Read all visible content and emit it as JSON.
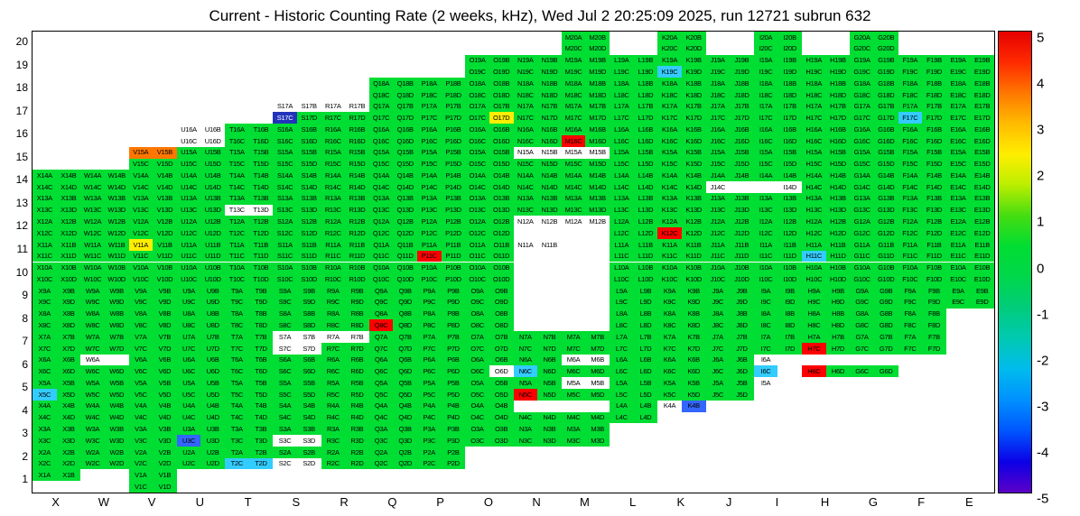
{
  "title": "Current - Historic Counting Rate (2 weeks, kHz), Wed Jul  2 20:25:09 2025, run 12721 subrun 632",
  "chart_data": {
    "type": "heatmap",
    "title": "Current - Historic Counting Rate (2 weeks, kHz), Wed Jul  2 20:25:09 2025, run 12721 subrun 632",
    "units": "kHz difference (current - historic)",
    "columns": [
      "X",
      "W",
      "V",
      "U",
      "T",
      "S",
      "R",
      "Q",
      "P",
      "O",
      "N",
      "M",
      "L",
      "K",
      "J",
      "I",
      "H",
      "G",
      "F",
      "E"
    ],
    "rows": [
      20,
      19,
      18,
      17,
      16,
      15,
      14,
      13,
      12,
      11,
      10,
      9,
      8,
      7,
      6,
      5,
      4,
      3,
      2,
      1
    ],
    "sublabels": [
      "A",
      "B",
      "C",
      "D"
    ],
    "zlim": [
      -5,
      5
    ],
    "colorbar_ticks": [
      5,
      4,
      3,
      2,
      1,
      0,
      -1,
      -2,
      -3,
      -4,
      -5
    ],
    "legend_position": "right",
    "grid": "off",
    "palette": {
      "g": "#00dd33",
      "w": "#ffffff",
      "r": "#ff0000",
      "o": "#ff7700",
      "y": "#ffee00",
      "c": "#33ccff",
      "b": "#3366ff",
      "B": "#2233bb"
    },
    "code_values": {
      "g": 0.5,
      "w": null,
      "r": 5,
      "o": 4,
      "y": 2.5,
      "c": -2,
      "b": -3,
      "B": -4
    },
    "colorbar_gradient": [
      "#e60000",
      "#ff2a00",
      "#ff7700",
      "#ffbb00",
      "#ffee00",
      "#baee00",
      "#44dd11",
      "#00dd33",
      "#00d74b",
      "#00cc7c",
      "#00c9b2",
      "#00bbee",
      "#0090ff",
      "#0055ff",
      "#0b00e6",
      "#5d00c8"
    ],
    "cells": {
      "20": [
        "",
        "",
        "",
        "",
        "",
        "",
        "",
        "",
        "",
        "",
        "",
        "gggg",
        "",
        "gggg",
        "",
        "gggg",
        "",
        "gggg",
        "",
        ""
      ],
      "19": [
        "",
        "",
        "",
        "",
        "",
        "",
        "",
        "",
        "",
        "gggg",
        "gggg",
        "gggg",
        "gggg",
        "ggcg",
        "gggg",
        "gggg",
        "gggg",
        "gggg",
        "gggg",
        "gggg"
      ],
      "18": [
        "",
        "",
        "",
        "",
        "",
        "",
        "",
        "gggg",
        "gggg",
        "gggg",
        "gggg",
        "gggg",
        "gggg",
        "gggg",
        "gggg",
        "gggg",
        "gggg",
        "gggg",
        "gggg",
        "gggg"
      ],
      "17": [
        "",
        "",
        "",
        "",
        "",
        "wwBg",
        "wwgg",
        "gggg",
        "gggg",
        "gggy",
        "gggg",
        "gggg",
        "gggg",
        "gggg",
        "gggg",
        "gggg",
        "gggg",
        "gggg",
        "ggcg",
        "gggg"
      ],
      "16": [
        "",
        "",
        "",
        "wwww",
        "gggg",
        "gggg",
        "gggg",
        "gggg",
        "gggg",
        "gggg",
        "gggg",
        "ggrg",
        "gggg",
        "gggg",
        "gggg",
        "gggg",
        "gggg",
        "gggg",
        "gggg",
        "gggg"
      ],
      "15": [
        "",
        "",
        "oogg",
        "gggg",
        "gggg",
        "gggg",
        "gggg",
        "gggg",
        "gggg",
        "gggg",
        "wwgg",
        "wwgg",
        "gggg",
        "gggg",
        "gggg",
        "gggg",
        "gggg",
        "gggg",
        "gggg",
        "gggg"
      ],
      "14": [
        "gggg",
        "gggg",
        "gggg",
        "gggg",
        "gggg",
        "gggg",
        "gggg",
        "gggg",
        "gggg",
        "gggg",
        "gggg",
        "gggg",
        "gggg",
        "gggg",
        "ggw.",
        "gg.w",
        "gggg",
        "gggg",
        "gggg",
        "gggg"
      ],
      "13": [
        "gggg",
        "gggg",
        "gggg",
        "gggg",
        "ggww",
        "gggg",
        "gggg",
        "gggg",
        "gggg",
        "gggg",
        "gggg",
        "gggg",
        "gggg",
        "gggg",
        "gggg",
        "gggg",
        "gggg",
        "gggg",
        "gggg",
        "gggg"
      ],
      "12": [
        "gggg",
        "gggg",
        "gggg",
        "gggg",
        "gggg",
        "gggg",
        "gggg",
        "gggg",
        "gggg",
        "gggg",
        "ww..",
        "ww..",
        "gggg",
        "ggrg",
        "gggg",
        "gggg",
        "gggg",
        "gggg",
        "gggg",
        "gggg"
      ],
      "11": [
        "gggg",
        "gggg",
        "yggg",
        "gggg",
        "gggg",
        "gggg",
        "gggg",
        "gggg",
        "ggrg",
        "gggg",
        "ww..",
        "",
        "gggg",
        "gggg",
        "gggg",
        "gggg",
        "ggcg",
        "gggg",
        "gggg",
        "gggg"
      ],
      "10": [
        "gggg",
        "gggg",
        "gggg",
        "gggg",
        "gggg",
        "gggg",
        "gggg",
        "gggg",
        "gggg",
        "gggg",
        "",
        "",
        "gggg",
        "gggg",
        "gggg",
        "gggg",
        "gggg",
        "gggg",
        "gggg",
        "gggg"
      ],
      "9": [
        "gggg",
        "gggg",
        "gggg",
        "gggg",
        "gggg",
        "gggg",
        "gggg",
        "gggg",
        "gggg",
        "gggg",
        "",
        "",
        "gggg",
        "gggg",
        "gggg",
        "gggg",
        "gggg",
        "gggg",
        "gggg",
        "gggg"
      ],
      "8": [
        "gggg",
        "gggg",
        "gggg",
        "gggg",
        "gggg",
        "gggg",
        "gggg",
        "ggrg",
        "gggg",
        "gggg",
        "",
        "",
        "gggg",
        "gggg",
        "gggg",
        "gggg",
        "gggg",
        "gggg",
        "gggg",
        ""
      ],
      "7": [
        "gggg",
        "gggg",
        "gggg",
        "gggg",
        "gggg",
        "wwww",
        "wwgg",
        "gggg",
        "gggg",
        "gggg",
        "gggg",
        "gggg",
        "gggg",
        "gggg",
        "gggg",
        "gggg",
        "ggrg",
        "gggg",
        "gggg",
        ""
      ],
      "6": [
        "gggg",
        "w.gg",
        "gggg",
        "gggg",
        "gggg",
        "gggg",
        "gggg",
        "gggg",
        "gggg",
        "gggw",
        "ggcg",
        "wwgg",
        "gggg",
        "gggg",
        "gggg",
        "w.c.",
        "..rg",
        "..gg",
        "",
        ""
      ],
      "5": [
        "ggcg",
        "gggg",
        "gggg",
        "gggg",
        "gggg",
        "gggg",
        "gggg",
        "gggg",
        "gggg",
        "gggg",
        "ggrg",
        "wwgg",
        "gggg",
        "gggg",
        "gggg",
        "w...",
        "",
        "",
        "",
        ""
      ],
      "4": [
        "gggg",
        "gggg",
        "gggg",
        "gggg",
        "gggg",
        "gggg",
        "gggg",
        "gggg",
        "gggg",
        "gggg",
        "..gg",
        "..gg",
        "gggg",
        "wb..",
        "",
        "",
        "",
        "",
        "",
        ""
      ],
      "3": [
        "gggg",
        "gggg",
        "gggg",
        "ggbg",
        "gggg",
        "ggww",
        "gggg",
        "gggg",
        "gggg",
        "gggg",
        "gggg",
        "gggg",
        "",
        "",
        "",
        "",
        "",
        "",
        "",
        ""
      ],
      "2": [
        "gggg",
        "gggg",
        "gggg",
        "gggg",
        "ggcc",
        "ggww",
        "gggg",
        "gggg",
        "gggg",
        "",
        "",
        "",
        "",
        "",
        "",
        "",
        "",
        "",
        "",
        ""
      ],
      "1": [
        "gg..",
        "",
        "gggg",
        "",
        "",
        "",
        "",
        "",
        "",
        "",
        "",
        "",
        "",
        "",
        "",
        "",
        "",
        "",
        "",
        ""
      ]
    }
  }
}
